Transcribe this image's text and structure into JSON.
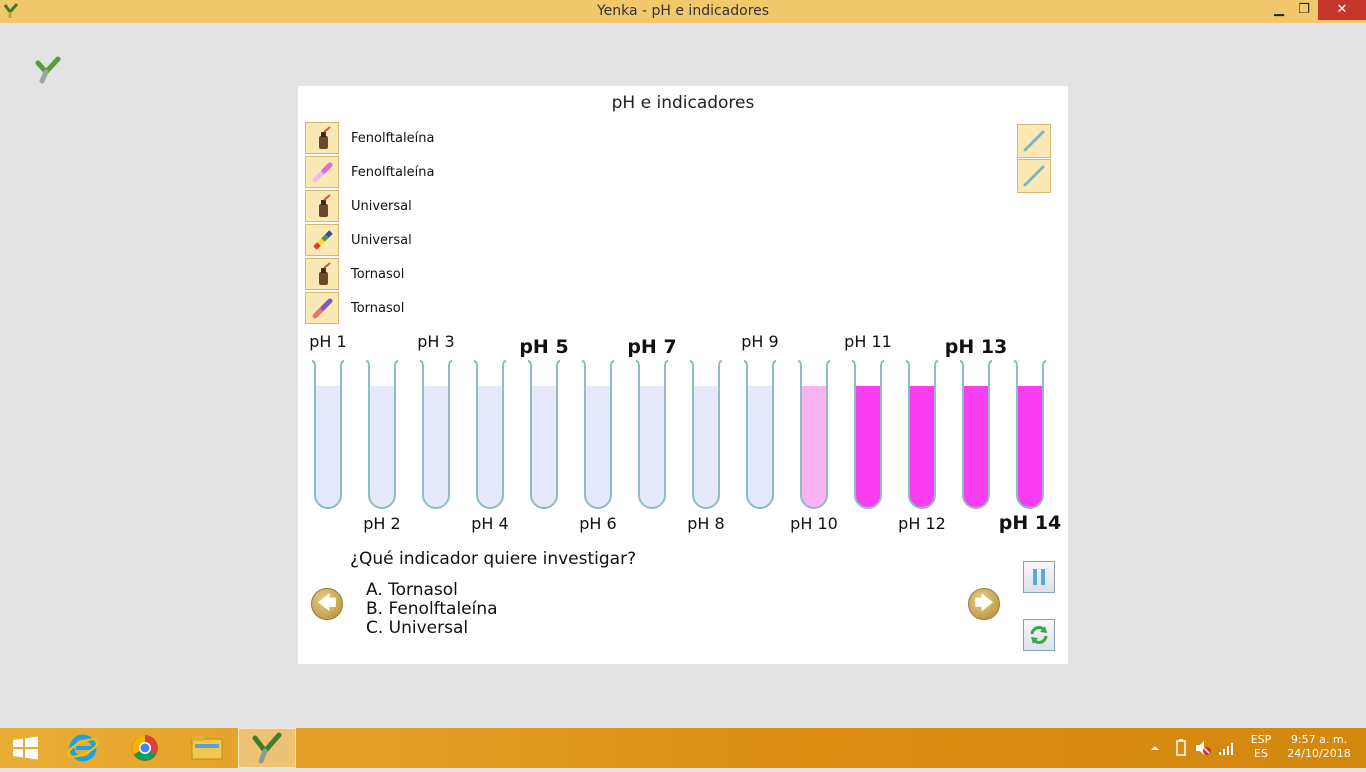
{
  "window": {
    "title": "Yenka - pH e indicadores",
    "minimize": "▁",
    "maximize": "❐",
    "close": "✕"
  },
  "panel": {
    "title": "pH e indicadores",
    "indicators": [
      {
        "label": "Fenolftaleína",
        "icon": "dropper-bottle-icon"
      },
      {
        "label": "Fenolftaleína",
        "icon": "paper-strip-pink-icon"
      },
      {
        "label": "Universal",
        "icon": "dropper-bottle-icon"
      },
      {
        "label": "Universal",
        "icon": "paper-strip-rainbow-icon"
      },
      {
        "label": "Tornasol",
        "icon": "dropper-bottle-icon"
      },
      {
        "label": "Tornasol",
        "icon": "paper-strip-litmus-icon"
      }
    ],
    "tools": [
      {
        "icon": "glass-rod-icon"
      },
      {
        "icon": "glass-rod-icon"
      }
    ],
    "tubes": [
      {
        "label": "pH 1",
        "color": "#e6e8fb",
        "big": false
      },
      {
        "label": "pH 2",
        "color": "#e6e8fb",
        "big": false
      },
      {
        "label": "pH 3",
        "color": "#e6e8fb",
        "big": false
      },
      {
        "label": "pH 4",
        "color": "#e6e8fb",
        "big": false
      },
      {
        "label": "pH 5",
        "color": "#e6e8fb",
        "big": true
      },
      {
        "label": "pH 6",
        "color": "#e6e8fb",
        "big": false
      },
      {
        "label": "pH 7",
        "color": "#e6e8fb",
        "big": true
      },
      {
        "label": "pH 8",
        "color": "#e6e8fb",
        "big": false
      },
      {
        "label": "pH 9",
        "color": "#e6e8fb",
        "big": false
      },
      {
        "label": "pH 10",
        "color": "#f9b3f2",
        "big": false
      },
      {
        "label": "pH 11",
        "color": "#f83cf0",
        "big": false
      },
      {
        "label": "pH 12",
        "color": "#f83cf0",
        "big": false
      },
      {
        "label": "pH 13",
        "color": "#f83cf0",
        "big": true
      },
      {
        "label": "pH 14",
        "color": "#f83cf0",
        "big": true
      }
    ],
    "question": "¿Qué indicador quiere investigar?",
    "options": [
      "A. Tornasol",
      "B. Fenolftaleína",
      "C. Universal"
    ],
    "nav": {
      "prev": "🡄",
      "next": "🡆"
    }
  },
  "taskbar": {
    "items": [
      "windows-start-icon",
      "internet-explorer-icon",
      "chrome-icon",
      "file-explorer-icon",
      "yenka-icon"
    ],
    "lang_top": "ESP",
    "lang_bottom": "ES",
    "time": "9:57 a. m.",
    "date": "24/10/2018"
  }
}
